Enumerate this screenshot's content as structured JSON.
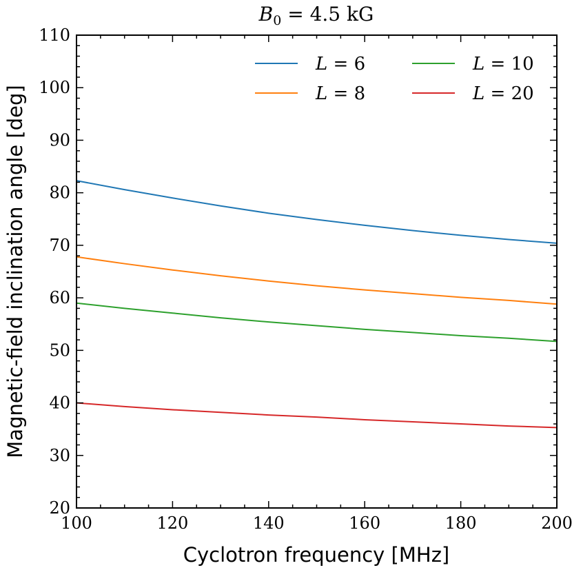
{
  "chart_data": {
    "type": "line",
    "title": "B_0 = 4.5 kG",
    "title_parts": {
      "symbol": "B",
      "subscript": "0",
      "rest": " = 4.5 kG"
    },
    "xlabel": "Cyclotron frequency [MHz]",
    "ylabel": "Magnetic-field inclination angle [deg]",
    "xlim": [
      100,
      200
    ],
    "ylim": [
      20,
      110
    ],
    "xticks": [
      100,
      120,
      140,
      160,
      180,
      200
    ],
    "yticks": [
      20,
      30,
      40,
      50,
      60,
      70,
      80,
      90,
      100,
      110
    ],
    "x": [
      100,
      110,
      120,
      130,
      140,
      150,
      160,
      170,
      180,
      190,
      200
    ],
    "series": [
      {
        "name": "L = 6",
        "var": "L",
        "eq": "= 6",
        "color": "#1f77b4",
        "values": [
          82.3,
          80.6,
          79.0,
          77.5,
          76.1,
          74.9,
          73.8,
          72.8,
          71.9,
          71.1,
          70.4
        ]
      },
      {
        "name": "L = 8",
        "var": "L",
        "eq": "= 8",
        "color": "#ff7f0e",
        "values": [
          67.8,
          66.5,
          65.3,
          64.2,
          63.2,
          62.3,
          61.5,
          60.8,
          60.1,
          59.5,
          58.8
        ]
      },
      {
        "name": "L = 10",
        "var": "L",
        "eq": "= 10",
        "color": "#2ca02c",
        "values": [
          59.0,
          58.0,
          57.1,
          56.2,
          55.4,
          54.7,
          54.0,
          53.4,
          52.8,
          52.3,
          51.7
        ]
      },
      {
        "name": "L = 20",
        "var": "L",
        "eq": "= 20",
        "color": "#d62728",
        "values": [
          40.0,
          39.3,
          38.7,
          38.2,
          37.7,
          37.3,
          36.8,
          36.4,
          36.0,
          35.6,
          35.3
        ]
      }
    ],
    "legend": "top-right",
    "grid": false
  }
}
